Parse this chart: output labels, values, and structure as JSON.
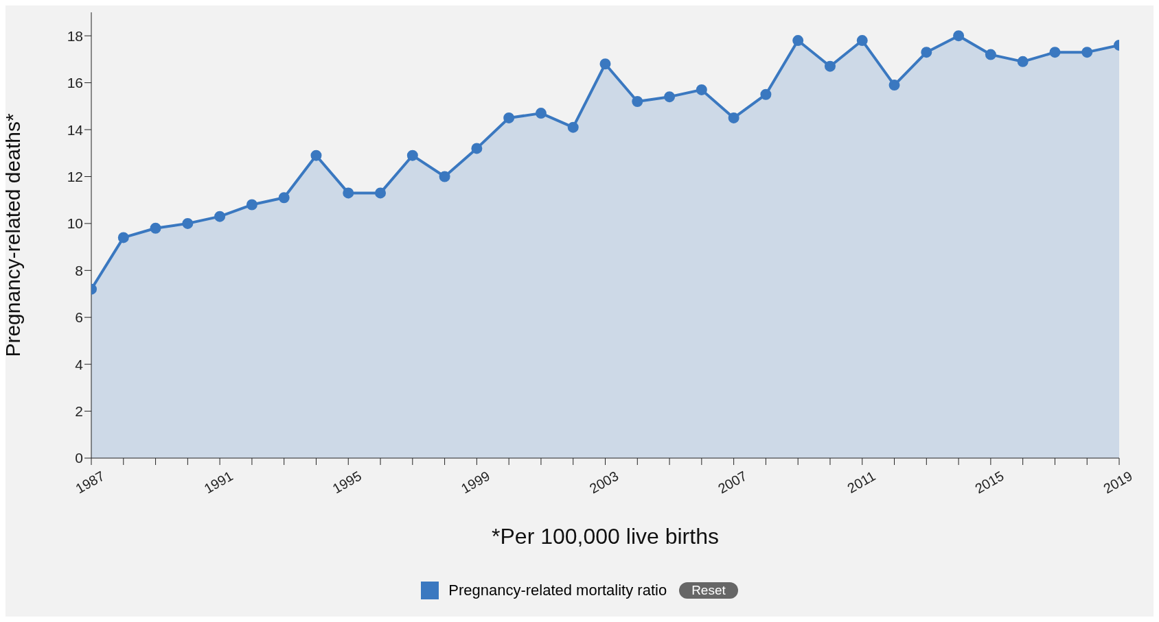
{
  "chart_data": {
    "type": "area",
    "xlabel": "*Per 100,000 live births",
    "ylabel": "Pregnancy-related deaths*",
    "x": [
      1987,
      1988,
      1989,
      1990,
      1991,
      1992,
      1993,
      1994,
      1995,
      1996,
      1997,
      1998,
      1999,
      2000,
      2001,
      2002,
      2003,
      2004,
      2005,
      2006,
      2007,
      2008,
      2009,
      2010,
      2011,
      2012,
      2013,
      2014,
      2015,
      2016,
      2017,
      2018,
      2019
    ],
    "series": [
      {
        "name": "Pregnancy-related mortality ratio",
        "color": "#3a78c0",
        "values": [
          7.2,
          9.4,
          9.8,
          10.0,
          10.3,
          10.8,
          11.1,
          12.9,
          11.3,
          11.3,
          12.9,
          12.0,
          13.2,
          14.5,
          14.7,
          14.1,
          16.8,
          15.2,
          15.4,
          15.7,
          14.5,
          15.5,
          17.8,
          16.7,
          17.8,
          15.9,
          17.3,
          18.0,
          17.2,
          16.9,
          17.3,
          17.3,
          17.6
        ]
      }
    ],
    "xlim": [
      1987,
      2019
    ],
    "xticks": [
      1987,
      {
        "value": 1988,
        "label": null
      },
      {
        "value": 1989,
        "label": null
      },
      {
        "value": 1990,
        "label": null
      },
      1991,
      {
        "value": 1992,
        "label": null
      },
      {
        "value": 1993,
        "label": null
      },
      {
        "value": 1994,
        "label": null
      },
      1995,
      {
        "value": 1996,
        "label": null
      },
      {
        "value": 1997,
        "label": null
      },
      {
        "value": 1998,
        "label": null
      },
      1999,
      {
        "value": 2000,
        "label": null
      },
      {
        "value": 2001,
        "label": null
      },
      {
        "value": 2002,
        "label": null
      },
      2003,
      {
        "value": 2004,
        "label": null
      },
      {
        "value": 2005,
        "label": null
      },
      {
        "value": 2006,
        "label": null
      },
      2007,
      {
        "value": 2008,
        "label": null
      },
      {
        "value": 2009,
        "label": null
      },
      {
        "value": 2010,
        "label": null
      },
      2011,
      {
        "value": 2012,
        "label": null
      },
      {
        "value": 2013,
        "label": null
      },
      {
        "value": 2014,
        "label": null
      },
      2015,
      {
        "value": 2016,
        "label": null
      },
      {
        "value": 2017,
        "label": null
      },
      {
        "value": 2018,
        "label": null
      },
      2019
    ],
    "ylim": [
      0,
      19
    ],
    "yticks": [
      0,
      2,
      4,
      6,
      8,
      10,
      12,
      14,
      16,
      18
    ],
    "marker": "circle",
    "grid": false,
    "legend": "bottom",
    "annotations": [
      "Reset"
    ]
  }
}
